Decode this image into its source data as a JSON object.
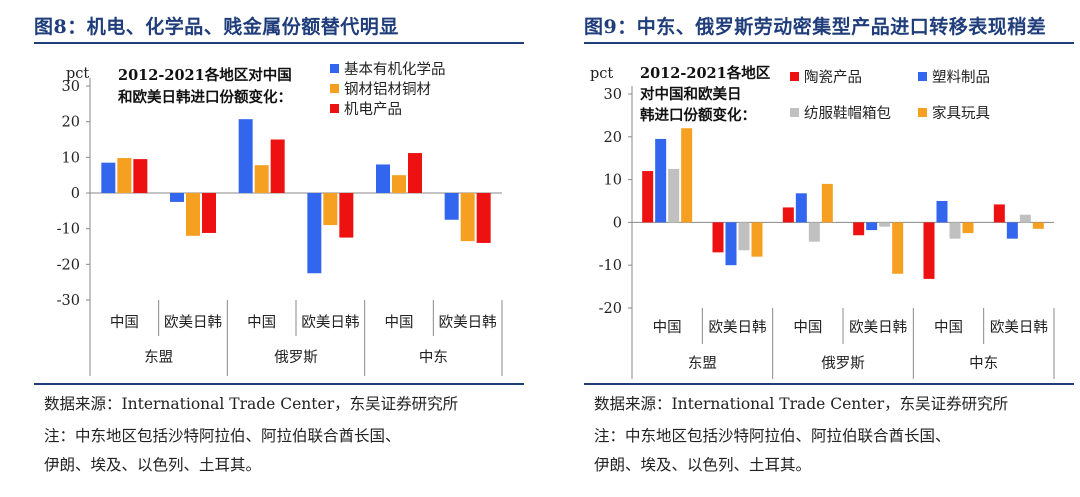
{
  "charts": [
    {
      "title": "图8：机电、化学品、贱金属份额替代明显",
      "source": "数据来源：International Trade Center，东吴证券研究所",
      "notes": [
        "注：中东地区包括沙特阿拉伯、阿拉伯联合酋长国、",
        "伊朗、埃及、以色列、土耳其。"
      ]
    },
    {
      "title": "图9：中东、俄罗斯劳动密集型产品进口转移表现稍差",
      "source": "数据来源：International Trade Center，东吴证券研究所",
      "notes": [
        "注：中东地区包括沙特阿拉伯、阿拉伯联合酋长国、",
        "伊朗、埃及、以色列、土耳其。"
      ]
    }
  ],
  "chart_data": [
    {
      "type": "bar",
      "annotation": [
        "2012-2021各地区对中国",
        "和欧美日韩进口份额变化："
      ],
      "ylabel": "pct",
      "ylim": [
        -30,
        30
      ],
      "yticks": [
        30,
        20,
        10,
        0,
        -10,
        -20,
        -30
      ],
      "categories": [
        "中国",
        "欧美日韩",
        "中国",
        "欧美日韩",
        "中国",
        "欧美日韩"
      ],
      "groups": [
        "东盟",
        "俄罗斯",
        "中东"
      ],
      "legend_layout": "single-column",
      "series": [
        {
          "name": "基本有机化学品",
          "color": "#3366ee",
          "values": [
            8.5,
            -2.5,
            20.7,
            -22.5,
            8.0,
            -7.5
          ]
        },
        {
          "name": "钢材铝材铜材",
          "color": "#f5a020",
          "values": [
            9.8,
            -12.0,
            7.8,
            -9.0,
            5.0,
            -13.5
          ]
        },
        {
          "name": "机电产品",
          "color": "#ee1111",
          "values": [
            9.5,
            -11.2,
            15.0,
            -12.5,
            11.2,
            -14.0
          ]
        }
      ]
    },
    {
      "type": "bar",
      "annotation": [
        "2012-2021各地区",
        "对中国和欧美日",
        "韩进口份额变化："
      ],
      "ylabel": "pct",
      "ylim": [
        -20,
        30
      ],
      "yticks": [
        30,
        20,
        10,
        0,
        -10,
        -20
      ],
      "categories": [
        "中国",
        "欧美日韩",
        "中国",
        "欧美日韩",
        "中国",
        "欧美日韩"
      ],
      "groups": [
        "东盟",
        "俄罗斯",
        "中东"
      ],
      "legend_layout": "two-column",
      "series": [
        {
          "name": "陶瓷产品",
          "color": "#ee1111",
          "values": [
            12.0,
            -7.0,
            3.5,
            -3.0,
            -13.2,
            4.2
          ]
        },
        {
          "name": "塑料制品",
          "color": "#3366ee",
          "values": [
            19.5,
            -10.0,
            6.8,
            -1.8,
            5.0,
            -3.8
          ]
        },
        {
          "name": "纺服鞋帽箱包",
          "color": "#c0c0c0",
          "values": [
            12.5,
            -6.5,
            -4.5,
            -1.0,
            -3.8,
            1.8
          ]
        },
        {
          "name": "家具玩具",
          "color": "#f5a020",
          "values": [
            22.0,
            -8.0,
            9.0,
            -12.0,
            -2.5,
            -1.5
          ]
        }
      ]
    }
  ]
}
